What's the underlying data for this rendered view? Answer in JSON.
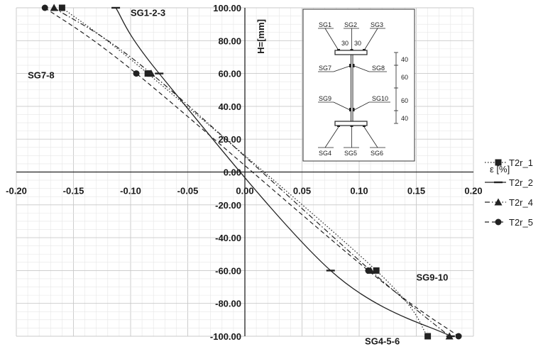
{
  "chart_data": {
    "type": "line",
    "title": "",
    "xlabel": "ε [%]",
    "ylabel": "H=[mm]",
    "xlim": [
      -0.2,
      0.2
    ],
    "ylim": [
      -100,
      100
    ],
    "x_ticks": [
      "-0.20",
      "-0.15",
      "-0.10",
      "-0.05",
      "0.00",
      "0.05",
      "0.10",
      "0.15",
      "0.20"
    ],
    "y_ticks": [
      "100.00",
      "80.00",
      "60.00",
      "40.00",
      "20.00",
      "0.00",
      "-20.00",
      "-40.00",
      "-60.00",
      "-80.00",
      "-100.00"
    ],
    "grid": true,
    "legend_position": "right",
    "series": [
      {
        "name": "T2r_1",
        "marker": "square",
        "dash": "dotted",
        "x": [
          -0.16,
          -0.085,
          0.115,
          0.16
        ],
        "y": [
          100,
          60,
          -60,
          -100
        ]
      },
      {
        "name": "T2r_2",
        "marker": "dash",
        "dash": "solid",
        "x": [
          -0.113,
          -0.075,
          0.075,
          0.18
        ],
        "y": [
          100,
          60,
          -60,
          -100
        ]
      },
      {
        "name": "T2r_4",
        "marker": "triangle",
        "dash": "dashdot",
        "x": [
          -0.167,
          -0.082,
          0.11,
          0.179
        ],
        "y": [
          100,
          60,
          -60,
          -100
        ]
      },
      {
        "name": "T2r_5",
        "marker": "circle",
        "dash": "dashed",
        "x": [
          -0.175,
          -0.095,
          0.108,
          0.187
        ],
        "y": [
          100,
          60,
          -60,
          -100
        ]
      }
    ],
    "annotations": [
      {
        "text": "SG1-2-3",
        "x": -0.1,
        "y": 95
      },
      {
        "text": "SG7-8",
        "x": -0.19,
        "y": 57
      },
      {
        "text": "SG9-10",
        "x": 0.15,
        "y": -66
      },
      {
        "text": "SG4-5-6",
        "x": 0.105,
        "y": -105
      }
    ],
    "inset": {
      "gauge_labels_top": [
        "SG1",
        "SG2",
        "SG3"
      ],
      "spacing_labels": [
        "30",
        "30"
      ],
      "web_labels_left": [
        "SG7",
        "SG9"
      ],
      "web_labels_right": [
        "SG8",
        "SG10"
      ],
      "gauge_labels_bottom": [
        "SG4",
        "SG5",
        "SG6"
      ],
      "height_dims": [
        "40",
        "60",
        "60",
        "40"
      ]
    }
  }
}
